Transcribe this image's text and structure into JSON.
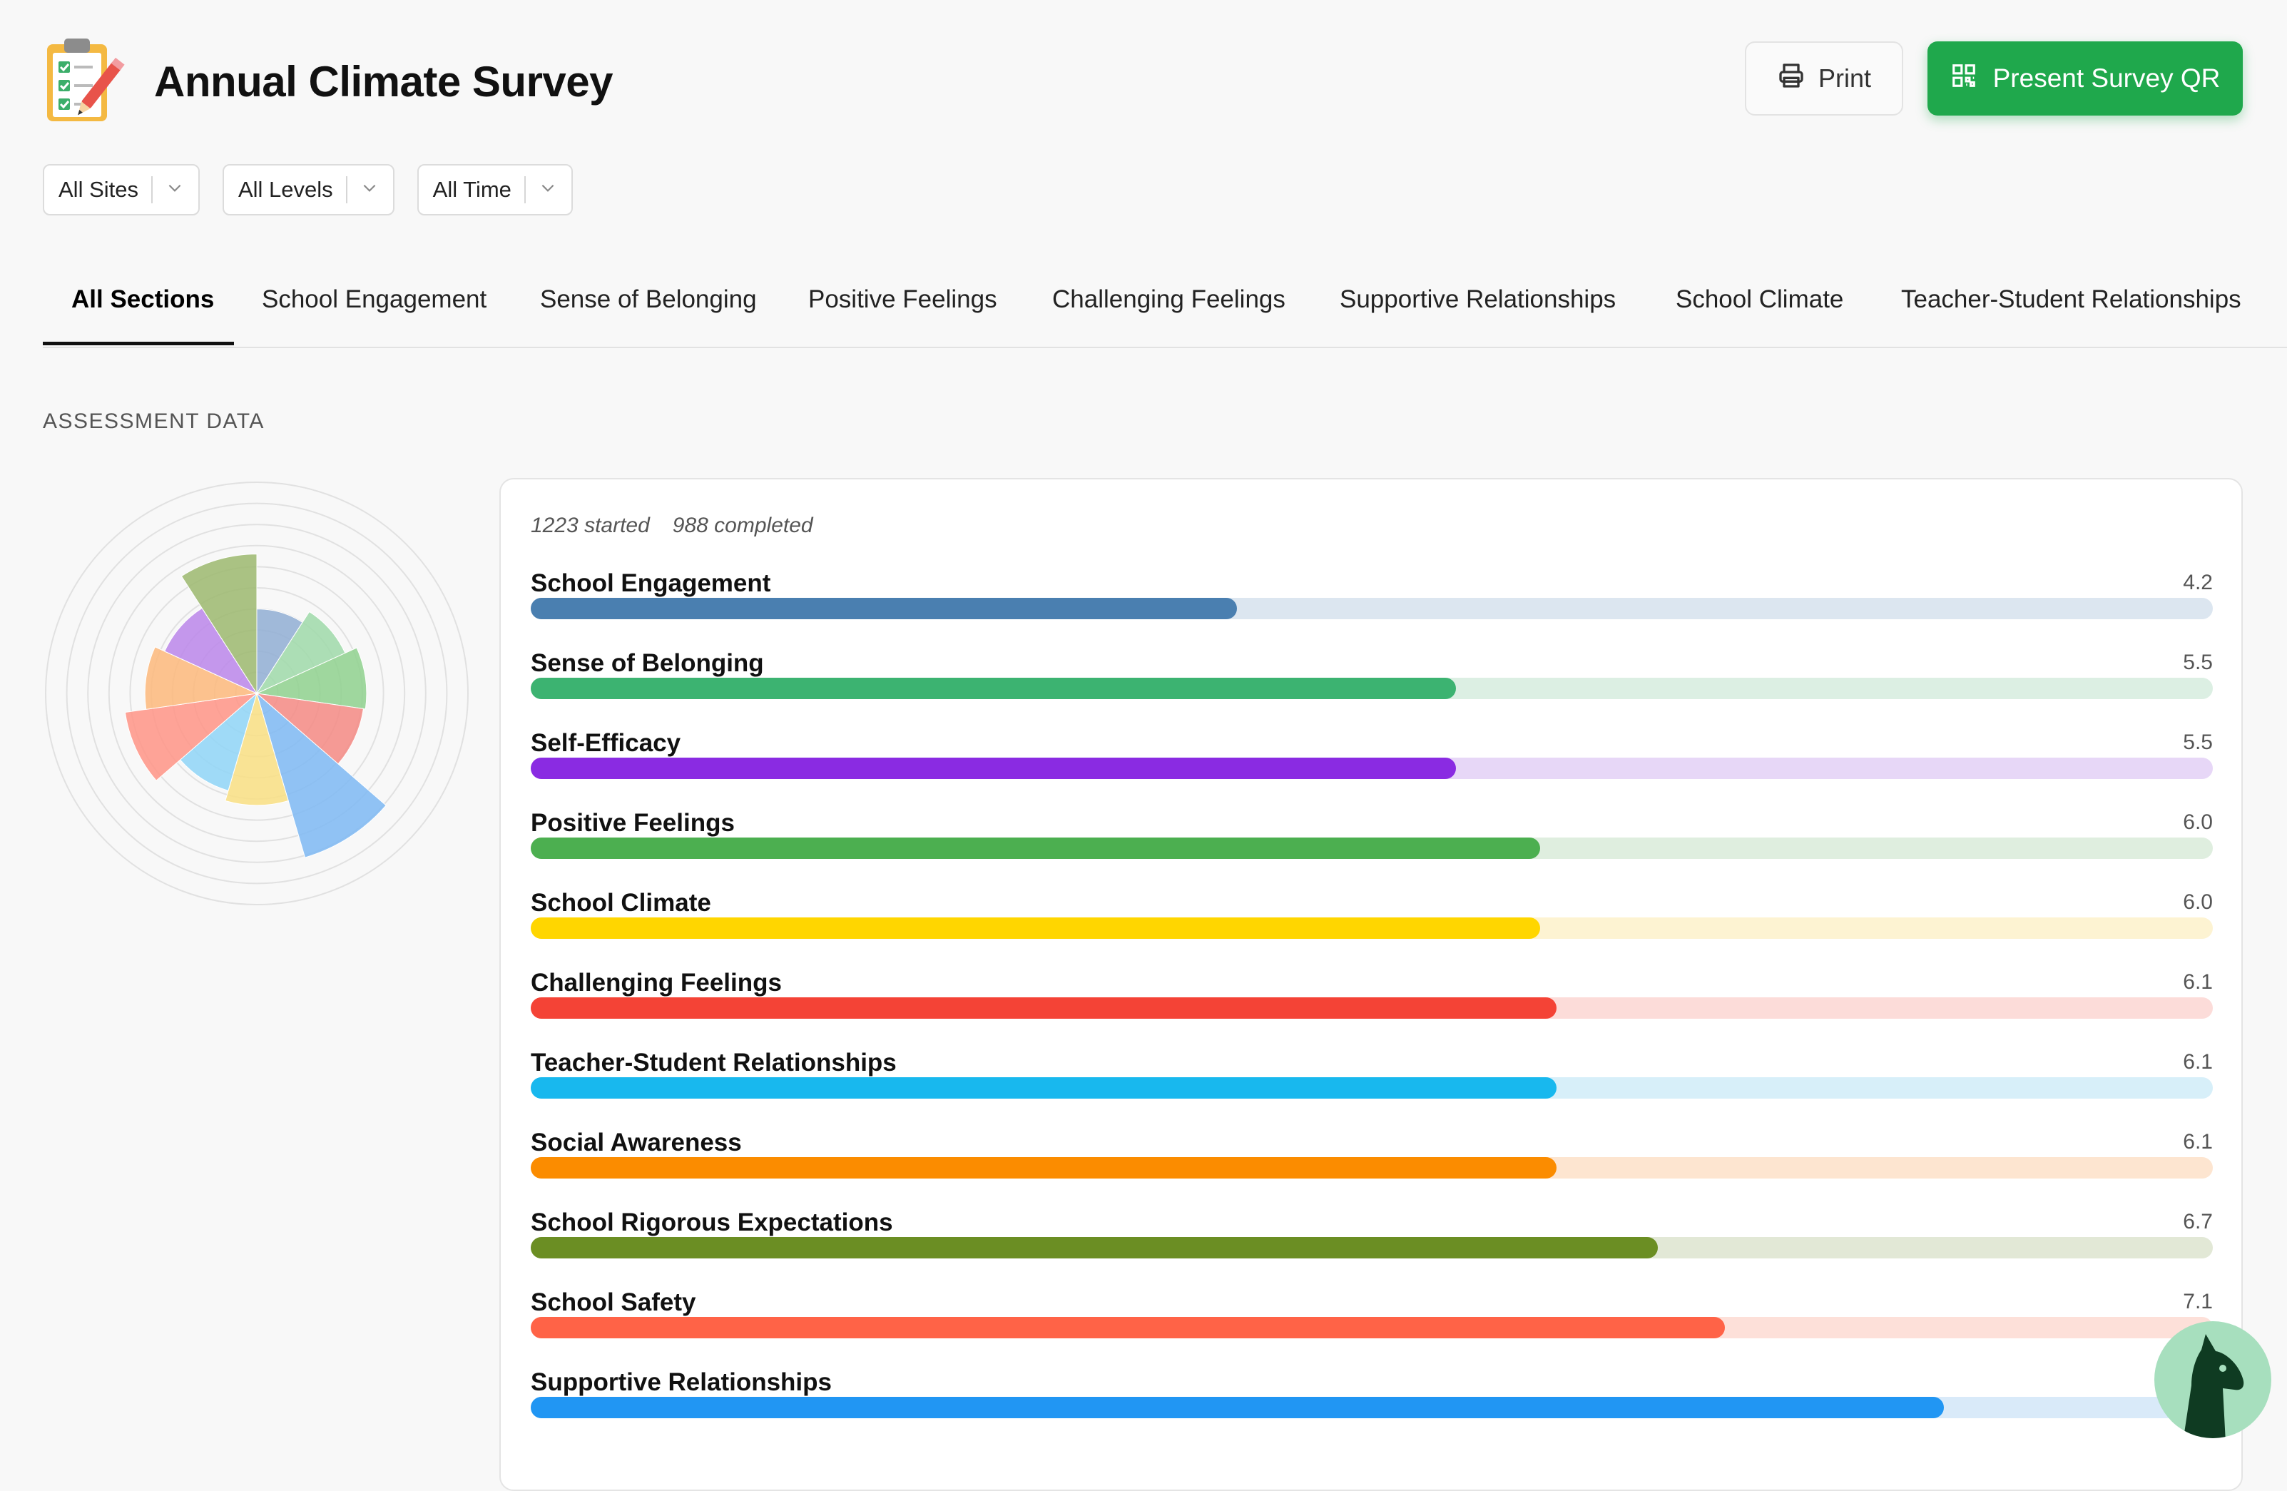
{
  "header": {
    "title": "Annual Climate Survey",
    "print_label": "Print",
    "qr_label": "Present Survey QR"
  },
  "filters": [
    {
      "label": "All Sites"
    },
    {
      "label": "All Levels"
    },
    {
      "label": "All Time"
    }
  ],
  "tabs": [
    {
      "label": "All Sections",
      "active": true
    },
    {
      "label": "School Engagement"
    },
    {
      "label": "Sense of Belonging"
    },
    {
      "label": "Positive Feelings"
    },
    {
      "label": "Challenging Feelings"
    },
    {
      "label": "Supportive Relationships"
    },
    {
      "label": "School Climate"
    },
    {
      "label": "Teacher-Student Relationships"
    }
  ],
  "section_label": "ASSESSMENT DATA",
  "summary": {
    "started": "1223 started",
    "completed": "988 completed"
  },
  "scale_max": 10,
  "metrics": [
    {
      "name": "School Engagement",
      "value": 4.2,
      "display": "4.2",
      "color": "#4a7fb0",
      "track": "#dce6f0"
    },
    {
      "name": "Sense of Belonging",
      "value": 5.5,
      "display": "5.5",
      "color": "#3cb371",
      "track": "#dcefe3"
    },
    {
      "name": "Self-Efficacy",
      "value": 5.5,
      "display": "5.5",
      "color": "#8a2be2",
      "track": "#e7d7f7"
    },
    {
      "name": "Positive Feelings",
      "value": 6.0,
      "display": "6.0",
      "color": "#4caf50",
      "track": "#dfeedf"
    },
    {
      "name": "School Climate",
      "value": 6.0,
      "display": "6.0",
      "color": "#ffd600",
      "track": "#fdf3d2"
    },
    {
      "name": "Challenging Feelings",
      "value": 6.1,
      "display": "6.1",
      "color": "#f44336",
      "track": "#fcdcd9"
    },
    {
      "name": "Teacher-Student Relationships",
      "value": 6.1,
      "display": "6.1",
      "color": "#18b8ee",
      "track": "#d7eff9"
    },
    {
      "name": "Social Awareness",
      "value": 6.1,
      "display": "6.1",
      "color": "#fb8c00",
      "track": "#fde5d0"
    },
    {
      "name": "School Rigorous Expectations",
      "value": 6.7,
      "display": "6.7",
      "color": "#6b8e23",
      "track": "#e2e8d6"
    },
    {
      "name": "School Safety",
      "value": 7.1,
      "display": "7.1",
      "color": "#ff6347",
      "track": "#fde0d9"
    },
    {
      "name": "Supportive Relationships",
      "value": 8.4,
      "display": "",
      "color": "#2196f3",
      "track": "#d9eaf9"
    }
  ],
  "icons": {
    "app": "clipboard-icon",
    "print": "printer-icon",
    "qr": "qr-code-icon",
    "help": "llama-mascot-icon"
  },
  "radial_chart": {
    "type": "radial-bar",
    "max": 10,
    "segments": [
      {
        "value": 4.0,
        "color": "#90aed3"
      },
      {
        "value": 4.6,
        "color": "#9fd9a9"
      },
      {
        "value": 5.2,
        "color": "#8fd18e"
      },
      {
        "value": 5.1,
        "color": "#f48a84"
      },
      {
        "value": 8.1,
        "color": "#7eb8f3"
      },
      {
        "value": 5.3,
        "color": "#f9df83"
      },
      {
        "value": 4.8,
        "color": "#8fd5f7"
      },
      {
        "value": 6.3,
        "color": "#ff9486"
      },
      {
        "value": 5.3,
        "color": "#fdb97b"
      },
      {
        "value": 4.8,
        "color": "#bb86ea"
      },
      {
        "value": 6.6,
        "color": "#9cb86e"
      }
    ]
  }
}
